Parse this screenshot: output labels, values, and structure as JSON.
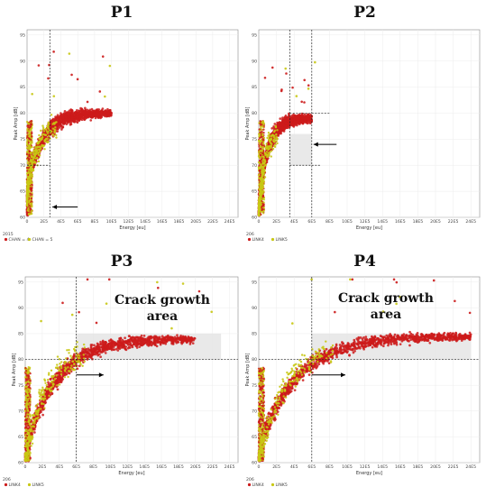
{
  "chart_data": [
    {
      "id": "p1",
      "type": "scatter",
      "title": "P1",
      "xlabel": "Energy [eu]",
      "ylabel": "Peak Amp [dB]",
      "xlim": [
        0,
        250000
      ],
      "ylim": [
        60,
        96
      ],
      "xticks": [
        "0",
        "2E5",
        "4E5",
        "6E5",
        "8E5",
        "10E5",
        "12E5",
        "14E5",
        "16E5",
        "18E5",
        "20E5",
        "22E5",
        "24E5"
      ],
      "yticks": [
        "60",
        "65",
        "70",
        "75",
        "80",
        "85",
        "90",
        "95"
      ],
      "corner_label": "2015",
      "series": [
        {
          "name": "CHAN = 4",
          "color": "#cc1b1b"
        },
        {
          "name": "CHAN = 5",
          "color": "#c8c814"
        }
      ],
      "thresholds": {
        "x": 27000,
        "y": 70
      },
      "arrow": {
        "from": [
          60000,
          62
        ],
        "to": [
          30000,
          62
        ]
      },
      "shade": null,
      "annotation": null,
      "curve": {
        "xmax": 100000,
        "a": 80,
        "b": 14
      }
    },
    {
      "id": "p2",
      "type": "scatter",
      "title": "P2",
      "xlabel": "Energy [eu]",
      "ylabel": "Peak Amp [dB]",
      "xlim": [
        0,
        250000
      ],
      "ylim": [
        60,
        96
      ],
      "xticks": [
        "0",
        "2E5",
        "4E5",
        "6E5",
        "8E5",
        "10E5",
        "12E5",
        "14E5",
        "16E5",
        "18E5",
        "20E5",
        "22E5",
        "24E5"
      ],
      "yticks": [
        "60",
        "65",
        "70",
        "75",
        "80",
        "85",
        "90",
        "95"
      ],
      "corner_label": "206",
      "series": [
        {
          "name": "LINK4",
          "color": "#cc1b1b"
        },
        {
          "name": "LINK5",
          "color": "#c8c814"
        }
      ],
      "thresholds": {
        "x": 60000,
        "y": 70,
        "x_left": 35000,
        "y_top": 80
      },
      "arrow": {
        "from": [
          88000,
          74
        ],
        "to": [
          62000,
          74
        ]
      },
      "shade": {
        "x0": 35000,
        "x1": 60000,
        "y0": 70,
        "y1": 76
      },
      "annotation": null,
      "curve": {
        "xmax": 60000,
        "a": 79,
        "b": 16
      }
    },
    {
      "id": "p3",
      "type": "scatter",
      "title": "P3",
      "xlabel": "Energy [eu]",
      "ylabel": "Peak Amp [dB]",
      "xlim": [
        0,
        250000
      ],
      "ylim": [
        60,
        96
      ],
      "xticks": [
        "0",
        "2E5",
        "4E5",
        "6E5",
        "8E5",
        "10E5",
        "12E5",
        "14E5",
        "16E5",
        "18E5",
        "20E5",
        "22E5",
        "24E5"
      ],
      "yticks": [
        "60",
        "65",
        "70",
        "75",
        "80",
        "85",
        "90",
        "95"
      ],
      "corner_label": "206",
      "series": [
        {
          "name": "LINK4",
          "color": "#cc1b1b"
        },
        {
          "name": "LINK5",
          "color": "#c8c814"
        }
      ],
      "thresholds": {
        "x": 60000,
        "y": 80
      },
      "arrow": {
        "from": [
          60000,
          77
        ],
        "to": [
          92000,
          77
        ]
      },
      "shade": {
        "x0": 60000,
        "x1": 230000,
        "y0": 80,
        "y1": 85
      },
      "annotation": {
        "lines": [
          "Crack growth",
          "area"
        ]
      },
      "curve": {
        "xmax": 200000,
        "a": 84,
        "b": 22
      }
    },
    {
      "id": "p4",
      "type": "scatter",
      "title": "P4",
      "xlabel": "Energy [eu]",
      "ylabel": "Peak Amp [dB]",
      "xlim": [
        0,
        250000
      ],
      "ylim": [
        60,
        96
      ],
      "xticks": [
        "0",
        "2E5",
        "4E5",
        "6E5",
        "8E5",
        "10E5",
        "12E5",
        "14E5",
        "16E5",
        "18E5",
        "20E5",
        "22E5",
        "24E5"
      ],
      "yticks": [
        "60",
        "65",
        "70",
        "75",
        "80",
        "85",
        "90",
        "95"
      ],
      "corner_label": "206",
      "series": [
        {
          "name": "LINK4",
          "color": "#cc1b1b"
        },
        {
          "name": "LINK5",
          "color": "#c8c814"
        }
      ],
      "thresholds": {
        "x": 60000,
        "y": 80
      },
      "arrow": {
        "from": [
          60000,
          77
        ],
        "to": [
          98000,
          77
        ]
      },
      "shade": {
        "x0": 60000,
        "x1": 240000,
        "y0": 80,
        "y1": 85
      },
      "annotation": {
        "lines": [
          "Crack growth",
          "area"
        ]
      },
      "curve": {
        "xmax": 240000,
        "a": 84.5,
        "b": 22
      }
    }
  ]
}
